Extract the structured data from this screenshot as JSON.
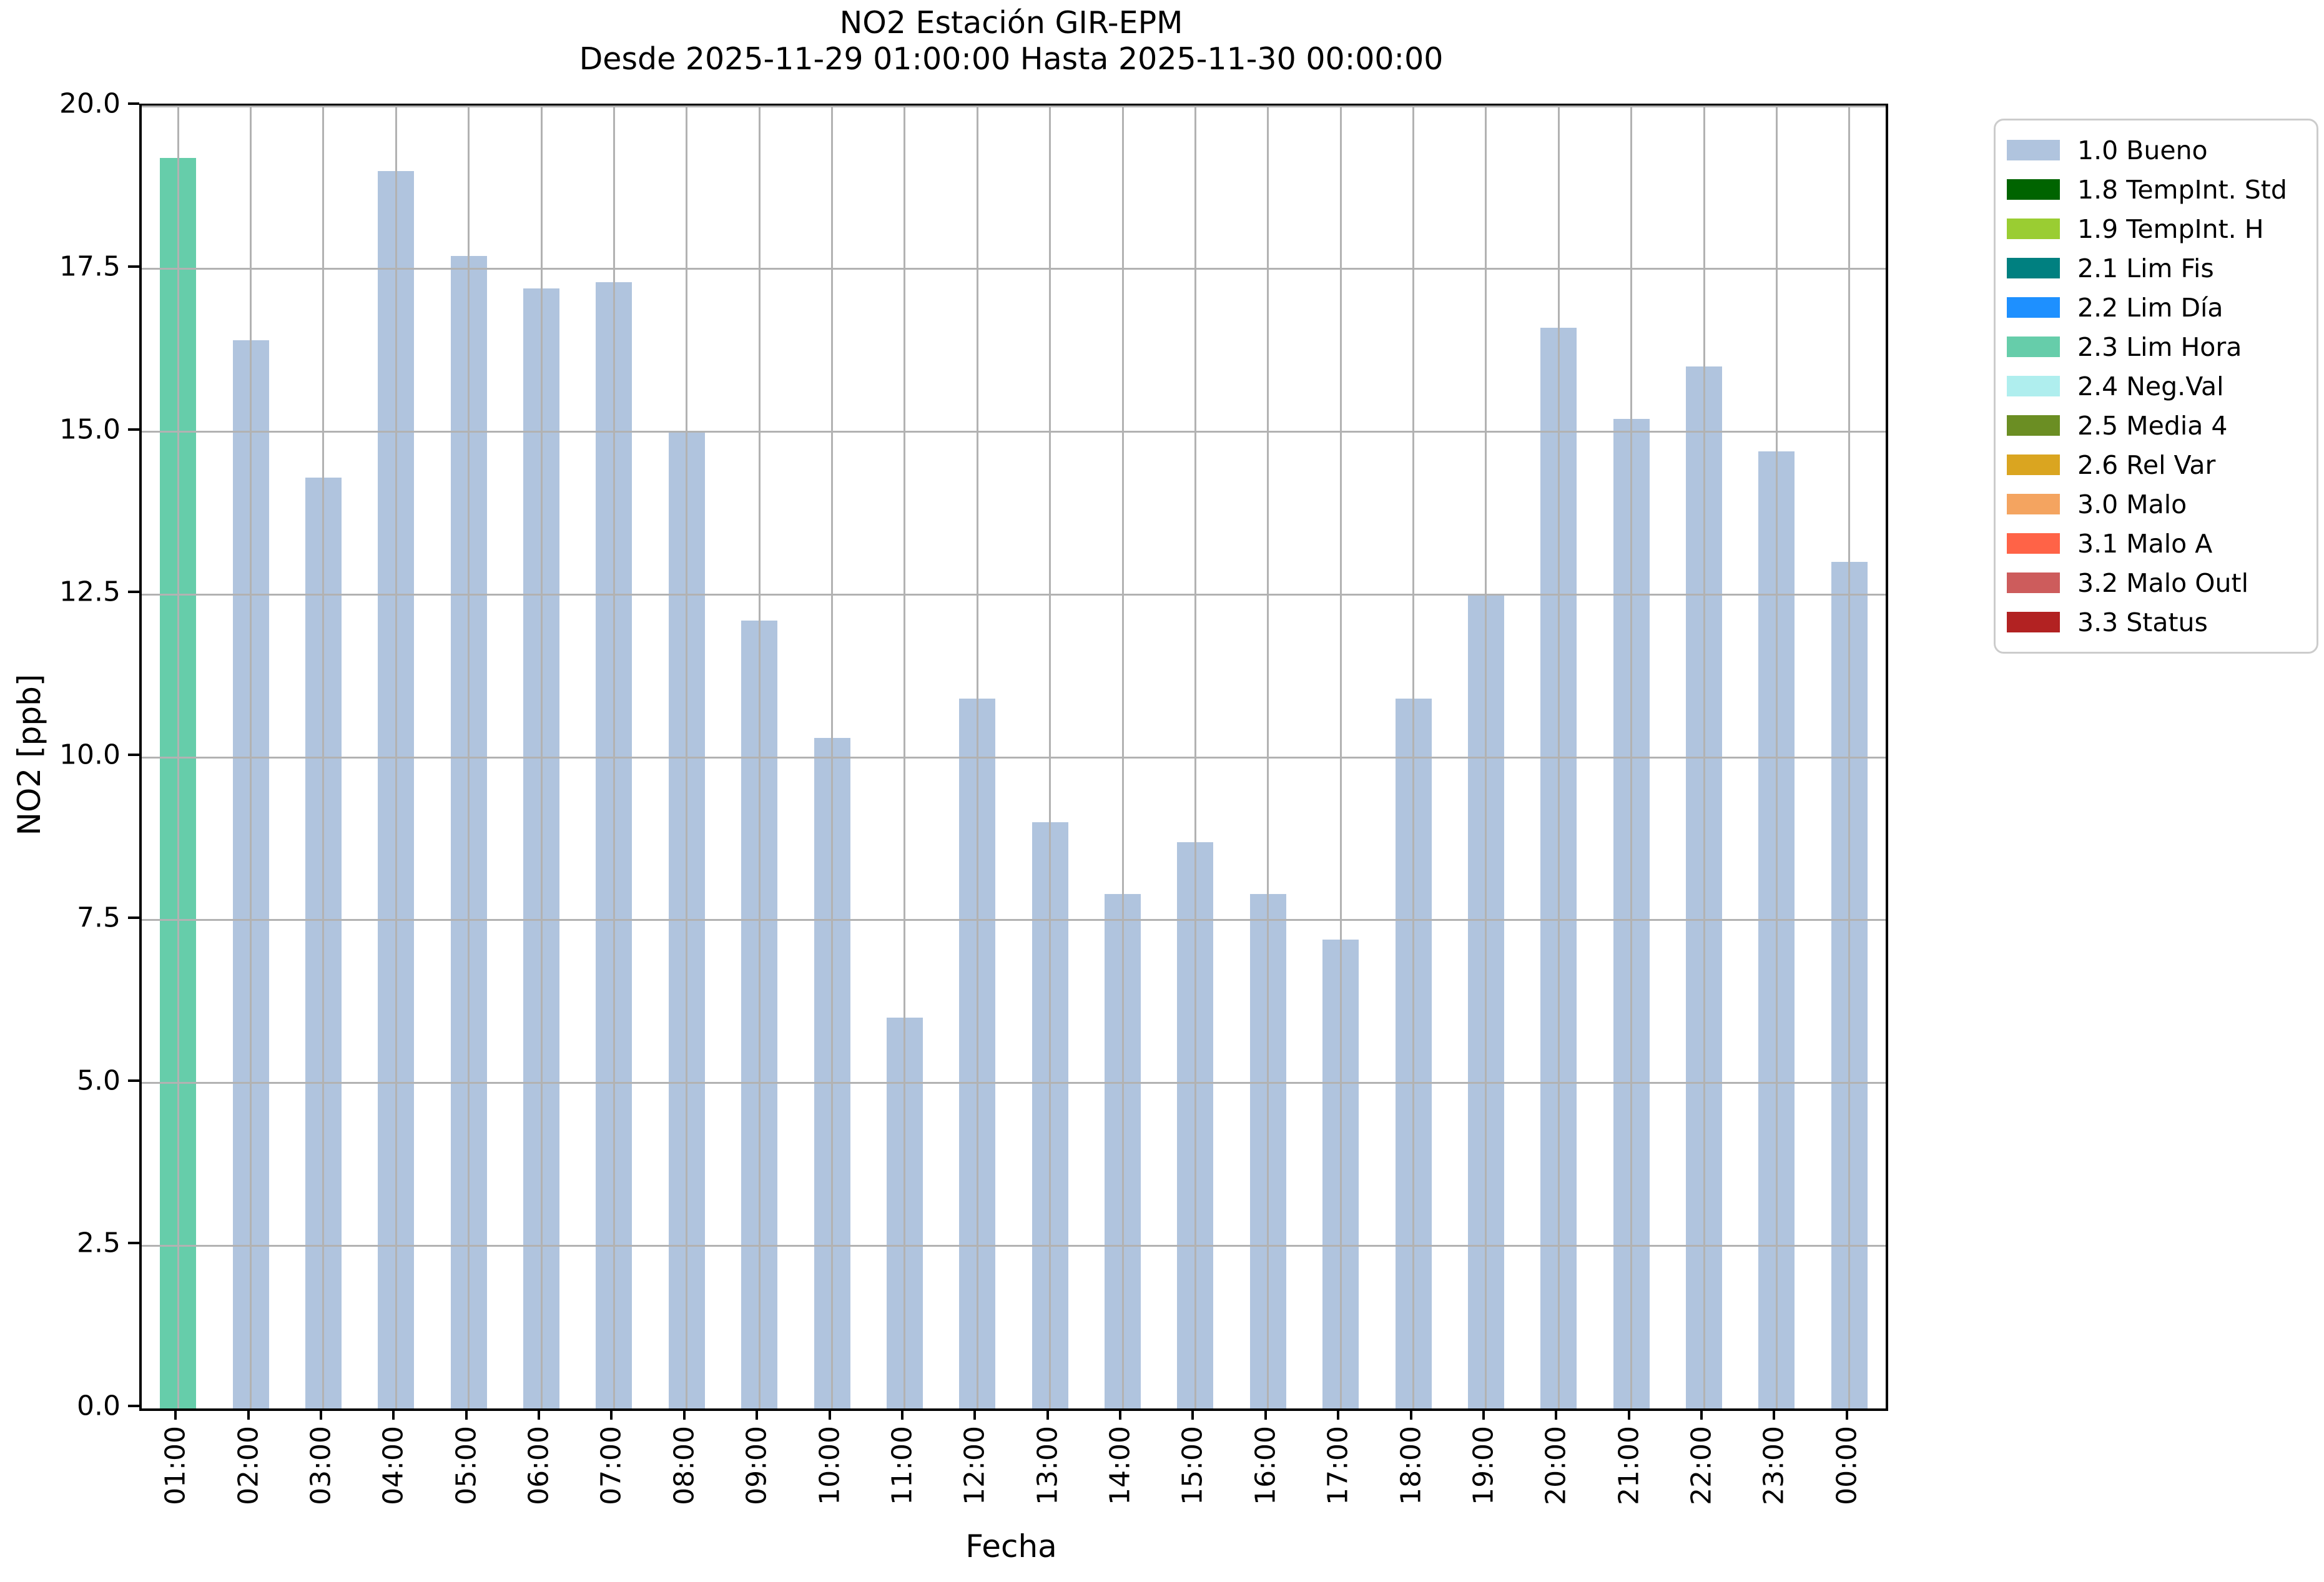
{
  "title": "NO2 Estación GIR-EPM",
  "subtitle": "Desde 2025-11-29 01:00:00 Hasta 2025-11-30 00:00:00",
  "chart_data": {
    "type": "bar",
    "title": "NO2 Estación GIR-EPM",
    "subtitle": "Desde 2025-11-29 01:00:00 Hasta 2025-11-30 00:00:00",
    "xlabel": "Fecha",
    "ylabel": "NO2 [ppb]",
    "ylim": [
      0,
      20
    ],
    "ytick_step": 2.5,
    "ytick_labels": [
      "0.0",
      "2.5",
      "5.0",
      "7.5",
      "10.0",
      "12.5",
      "15.0",
      "17.5",
      "20.0"
    ],
    "grid": true,
    "grid_color": "#b2b2b2",
    "categories": [
      "01:00",
      "02:00",
      "03:00",
      "04:00",
      "05:00",
      "06:00",
      "07:00",
      "08:00",
      "09:00",
      "10:00",
      "11:00",
      "12:00",
      "13:00",
      "14:00",
      "15:00",
      "16:00",
      "17:00",
      "18:00",
      "19:00",
      "20:00",
      "21:00",
      "22:00",
      "23:00",
      "00:00"
    ],
    "values": [
      19.2,
      16.4,
      14.3,
      19.0,
      17.7,
      17.2,
      17.3,
      15.0,
      12.1,
      10.3,
      6.0,
      10.9,
      9.0,
      7.9,
      8.7,
      7.9,
      7.2,
      10.9,
      12.5,
      16.6,
      15.2,
      16.0,
      14.7,
      13.0
    ],
    "bar_status": [
      "2.3 Lim Hora",
      "1.0 Bueno",
      "1.0 Bueno",
      "1.0 Bueno",
      "1.0 Bueno",
      "1.0 Bueno",
      "1.0 Bueno",
      "1.0 Bueno",
      "1.0 Bueno",
      "1.0 Bueno",
      "1.0 Bueno",
      "1.0 Bueno",
      "1.0 Bueno",
      "1.0 Bueno",
      "1.0 Bueno",
      "1.0 Bueno",
      "1.0 Bueno",
      "1.0 Bueno",
      "1.0 Bueno",
      "1.0 Bueno",
      "1.0 Bueno",
      "1.0 Bueno",
      "1.0 Bueno",
      "1.0 Bueno"
    ],
    "legend_position": "upper right outside",
    "legend": [
      {
        "label": "1.0 Bueno",
        "color": "#b0c4de"
      },
      {
        "label": "1.8 TempInt. Std",
        "color": "#006400"
      },
      {
        "label": "1.9 TempInt. H",
        "color": "#9acd32"
      },
      {
        "label": "2.1 Lim Fis",
        "color": "#008080"
      },
      {
        "label": "2.2 Lim Día",
        "color": "#1e90ff"
      },
      {
        "label": "2.3 Lim Hora",
        "color": "#66cdaa"
      },
      {
        "label": "2.4 Neg.Val",
        "color": "#afeeee"
      },
      {
        "label": "2.5 Media 4",
        "color": "#6b8e23"
      },
      {
        "label": "2.6 Rel Var",
        "color": "#daa520"
      },
      {
        "label": "3.0 Malo",
        "color": "#f4a460"
      },
      {
        "label": "3.1 Malo A",
        "color": "#ff6347"
      },
      {
        "label": "3.2 Malo Outl",
        "color": "#cd5c5c"
      },
      {
        "label": "3.3 Status",
        "color": "#b22222"
      }
    ]
  }
}
